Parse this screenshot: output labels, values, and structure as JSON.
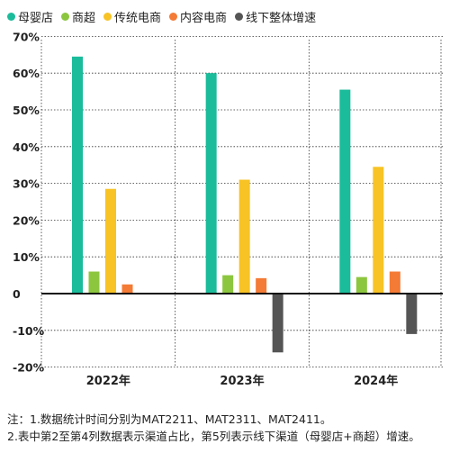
{
  "chart_data": {
    "type": "bar",
    "categories": [
      "2022年",
      "2023年",
      "2024年"
    ],
    "series": [
      {
        "name": "母婴店",
        "color": "#1BBC9B",
        "values": [
          64.5,
          60,
          55.5
        ]
      },
      {
        "name": "商超",
        "color": "#8CC63F",
        "values": [
          6,
          5,
          4.5
        ]
      },
      {
        "name": "传统电商",
        "color": "#F7C325",
        "values": [
          28.5,
          31,
          34.5
        ]
      },
      {
        "name": "内容电商",
        "color": "#F47B35",
        "values": [
          2.5,
          4.2,
          6
        ]
      },
      {
        "name": "线下整体增速",
        "color": "#555555",
        "values": [
          null,
          -16,
          -11
        ]
      }
    ],
    "y_ticks": [
      {
        "value": 70,
        "label": "70%"
      },
      {
        "value": 60,
        "label": "60%"
      },
      {
        "value": 50,
        "label": "50%"
      },
      {
        "value": 40,
        "label": "40%"
      },
      {
        "value": 30,
        "label": "30%"
      },
      {
        "value": 20,
        "label": "20%"
      },
      {
        "value": 10,
        "label": "10%"
      },
      {
        "value": 0,
        "label": "0"
      },
      {
        "value": -10,
        "label": "-10%"
      },
      {
        "value": -20,
        "label": "-20%"
      }
    ],
    "ylim": [
      -20,
      72
    ],
    "grid": "dashed",
    "legend_position": "top-left"
  },
  "notes": {
    "line1": "注：1.数据统计时间分别为MAT2211、MAT2311、MAT2411。",
    "line2": "2.表中第2至第4列数据表示渠道占比，第5列表示线下渠道（母婴店+商超）增速。"
  }
}
